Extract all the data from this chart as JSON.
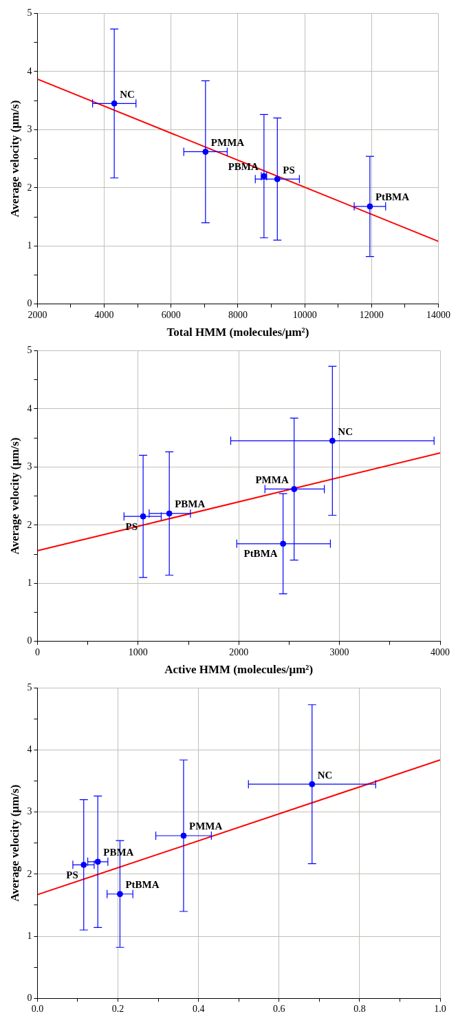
{
  "chart_data": [
    {
      "type": "scatter",
      "xlabel": "Total HMM (molecules/μm²)",
      "ylabel": "Average velocity (μm/s)",
      "grid": true,
      "xlim": [
        2000,
        14000
      ],
      "xticks": [
        2000,
        {
          "value": 3000,
          "label": null
        },
        4000,
        {
          "value": 5000,
          "label": null
        },
        6000,
        {
          "value": 7000,
          "label": null
        },
        8000,
        {
          "value": 9000,
          "label": null
        },
        10000,
        {
          "value": 11000,
          "label": null
        },
        12000,
        {
          "value": 13000,
          "label": null
        },
        14000
      ],
      "ylim": [
        0,
        5
      ],
      "yticks": [
        0,
        {
          "value": 0.5,
          "label": null
        },
        1,
        {
          "value": 1.5,
          "label": null
        },
        2,
        {
          "value": 2.5,
          "label": null
        },
        3,
        {
          "value": 3.5,
          "label": null
        },
        4,
        {
          "value": 4.5,
          "label": null
        },
        5
      ],
      "series": [
        {
          "marker": "circle",
          "color": "#0000ff",
          "x": [
            4300,
            7030,
            8780,
            9180,
            11950
          ],
          "values": [
            3.45,
            2.62,
            2.2,
            2.15,
            1.68
          ],
          "errors": [
            [
              2.17,
              4.73
            ],
            [
              1.4,
              3.84
            ],
            [
              1.14,
              3.26
            ],
            [
              1.1,
              3.2
            ],
            [
              0.82,
              2.54
            ]
          ],
          "xerrors": [
            [
              3650,
              4950
            ],
            [
              6380,
              7680
            ],
            [
              8700,
              8860
            ],
            [
              8520,
              9840
            ],
            [
              11480,
              12420
            ]
          ]
        },
        {
          "type": "line",
          "color": "#ff0000",
          "x": [
            2000,
            14000
          ],
          "values": [
            3.87,
            1.08
          ]
        }
      ],
      "annotations": [
        {
          "text": "NC",
          "x": 4300,
          "y": 3.45
        },
        {
          "text": "PMMA",
          "x": 7030,
          "y": 2.62
        },
        {
          "text": "PBMA",
          "x": 8780,
          "y": 2.2
        },
        {
          "text": "PS",
          "x": 9180,
          "y": 2.15
        },
        {
          "text": "PtBMA",
          "x": 11950,
          "y": 1.68
        }
      ]
    },
    {
      "type": "scatter",
      "xlabel": "Active HMM (molecules/μm²)",
      "ylabel": "Average velocity (μm/s)",
      "grid": true,
      "xlim": [
        0,
        4000
      ],
      "xticks": [
        0,
        {
          "value": 500,
          "label": null
        },
        1000,
        {
          "value": 1500,
          "label": null
        },
        2000,
        {
          "value": 2500,
          "label": null
        },
        3000,
        {
          "value": 3500,
          "label": null
        },
        4000
      ],
      "ylim": [
        0,
        5
      ],
      "yticks": [
        0,
        {
          "value": 0.5,
          "label": null
        },
        1,
        {
          "value": 1.5,
          "label": null
        },
        2,
        {
          "value": 2.5,
          "label": null
        },
        3,
        {
          "value": 3.5,
          "label": null
        },
        4,
        {
          "value": 4.5,
          "label": null
        },
        5
      ],
      "series": [
        {
          "marker": "circle",
          "color": "#0000ff",
          "x": [
            1050,
            1310,
            2550,
            2440,
            2930
          ],
          "values": [
            2.15,
            2.2,
            2.62,
            1.68,
            3.45
          ],
          "errors": [
            [
              1.1,
              3.2
            ],
            [
              1.14,
              3.26
            ],
            [
              1.4,
              3.84
            ],
            [
              0.82,
              2.54
            ],
            [
              2.17,
              4.73
            ]
          ],
          "xerrors": [
            [
              860,
              1230
            ],
            [
              1110,
              1520
            ],
            [
              2260,
              2850
            ],
            [
              1980,
              2910
            ],
            [
              1920,
              3940
            ]
          ]
        },
        {
          "type": "line",
          "color": "#ff0000",
          "x": [
            0,
            4000
          ],
          "values": [
            1.56,
            3.24
          ]
        }
      ],
      "annotations": [
        {
          "text": "PS",
          "x": 1050,
          "y": 2.15
        },
        {
          "text": "PBMA",
          "x": 1310,
          "y": 2.2
        },
        {
          "text": "PMMA",
          "x": 2550,
          "y": 2.62
        },
        {
          "text": "PtBMA",
          "x": 2440,
          "y": 1.68
        },
        {
          "text": "NC",
          "x": 2930,
          "y": 3.45
        }
      ]
    },
    {
      "type": "scatter",
      "ylabel": "Average velocity (μm/s)",
      "grid": true,
      "xlim": [
        0,
        1
      ],
      "xticks": [
        {
          "value": 0,
          "label": "0.0"
        },
        {
          "value": 0.1,
          "label": null
        },
        {
          "value": 0.2,
          "label": "0.2"
        },
        {
          "value": 0.3,
          "label": null
        },
        {
          "value": 0.4,
          "label": "0.4"
        },
        {
          "value": 0.5,
          "label": null
        },
        {
          "value": 0.6,
          "label": "0.6"
        },
        {
          "value": 0.7,
          "label": null
        },
        {
          "value": 0.8,
          "label": "0.8"
        },
        {
          "value": 0.9,
          "label": null
        },
        {
          "value": 1,
          "label": "1.0"
        }
      ],
      "ylim": [
        0,
        5
      ],
      "yticks": [
        0,
        {
          "value": 0.5,
          "label": null
        },
        1,
        {
          "value": 1.5,
          "label": null
        },
        2,
        {
          "value": 2.5,
          "label": null
        },
        3,
        {
          "value": 3.5,
          "label": null
        },
        4,
        {
          "value": 4.5,
          "label": null
        },
        5
      ],
      "series": [
        {
          "marker": "circle",
          "color": "#0000ff",
          "x": [
            0.115,
            0.15,
            0.205,
            0.363,
            0.682
          ],
          "values": [
            2.15,
            2.2,
            1.68,
            2.62,
            3.45
          ],
          "errors": [
            [
              1.1,
              3.2
            ],
            [
              1.14,
              3.26
            ],
            [
              0.82,
              2.54
            ],
            [
              1.4,
              3.84
            ],
            [
              2.17,
              4.73
            ]
          ],
          "xerrors": [
            [
              0.088,
              0.141
            ],
            [
              0.125,
              0.175
            ],
            [
              0.173,
              0.237
            ],
            [
              0.294,
              0.432
            ],
            [
              0.524,
              0.84
            ]
          ]
        },
        {
          "type": "line",
          "color": "#ff0000",
          "x": [
            0,
            1
          ],
          "values": [
            1.67,
            3.84
          ]
        }
      ],
      "annotations": [
        {
          "text": "PS",
          "x": 0.115,
          "y": 2.15
        },
        {
          "text": "PBMA",
          "x": 0.15,
          "y": 2.2
        },
        {
          "text": "PtBMA",
          "x": 0.205,
          "y": 1.68
        },
        {
          "text": "PMMA",
          "x": 0.363,
          "y": 2.62
        },
        {
          "text": "NC",
          "x": 0.682,
          "y": 3.45
        }
      ]
    }
  ]
}
